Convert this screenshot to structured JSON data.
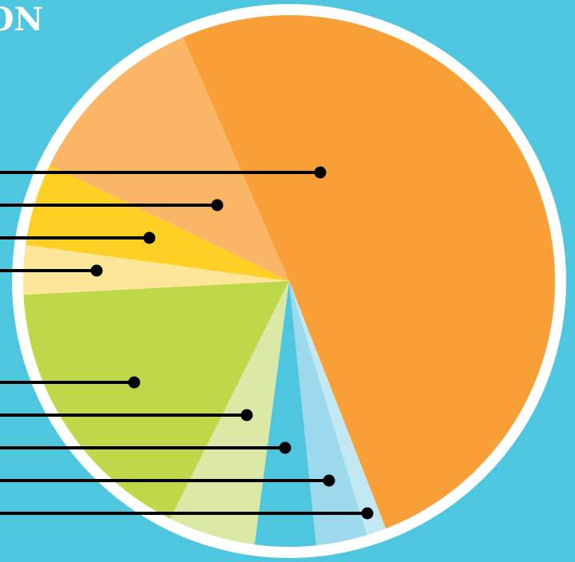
{
  "chart_data": {
    "type": "pie",
    "title": "ON",
    "values": [
      50.6,
      1.2,
      3.1,
      3.7,
      5.3,
      16.8,
      3.0,
      5.0,
      11.3
    ],
    "colors": [
      "#f99f38",
      "#c2e8f3",
      "#9dd9ec",
      "#4ec6e0",
      "#d9e8a4",
      "#bfd849",
      "#fee597",
      "#fed024",
      "#fbb567"
    ]
  }
}
